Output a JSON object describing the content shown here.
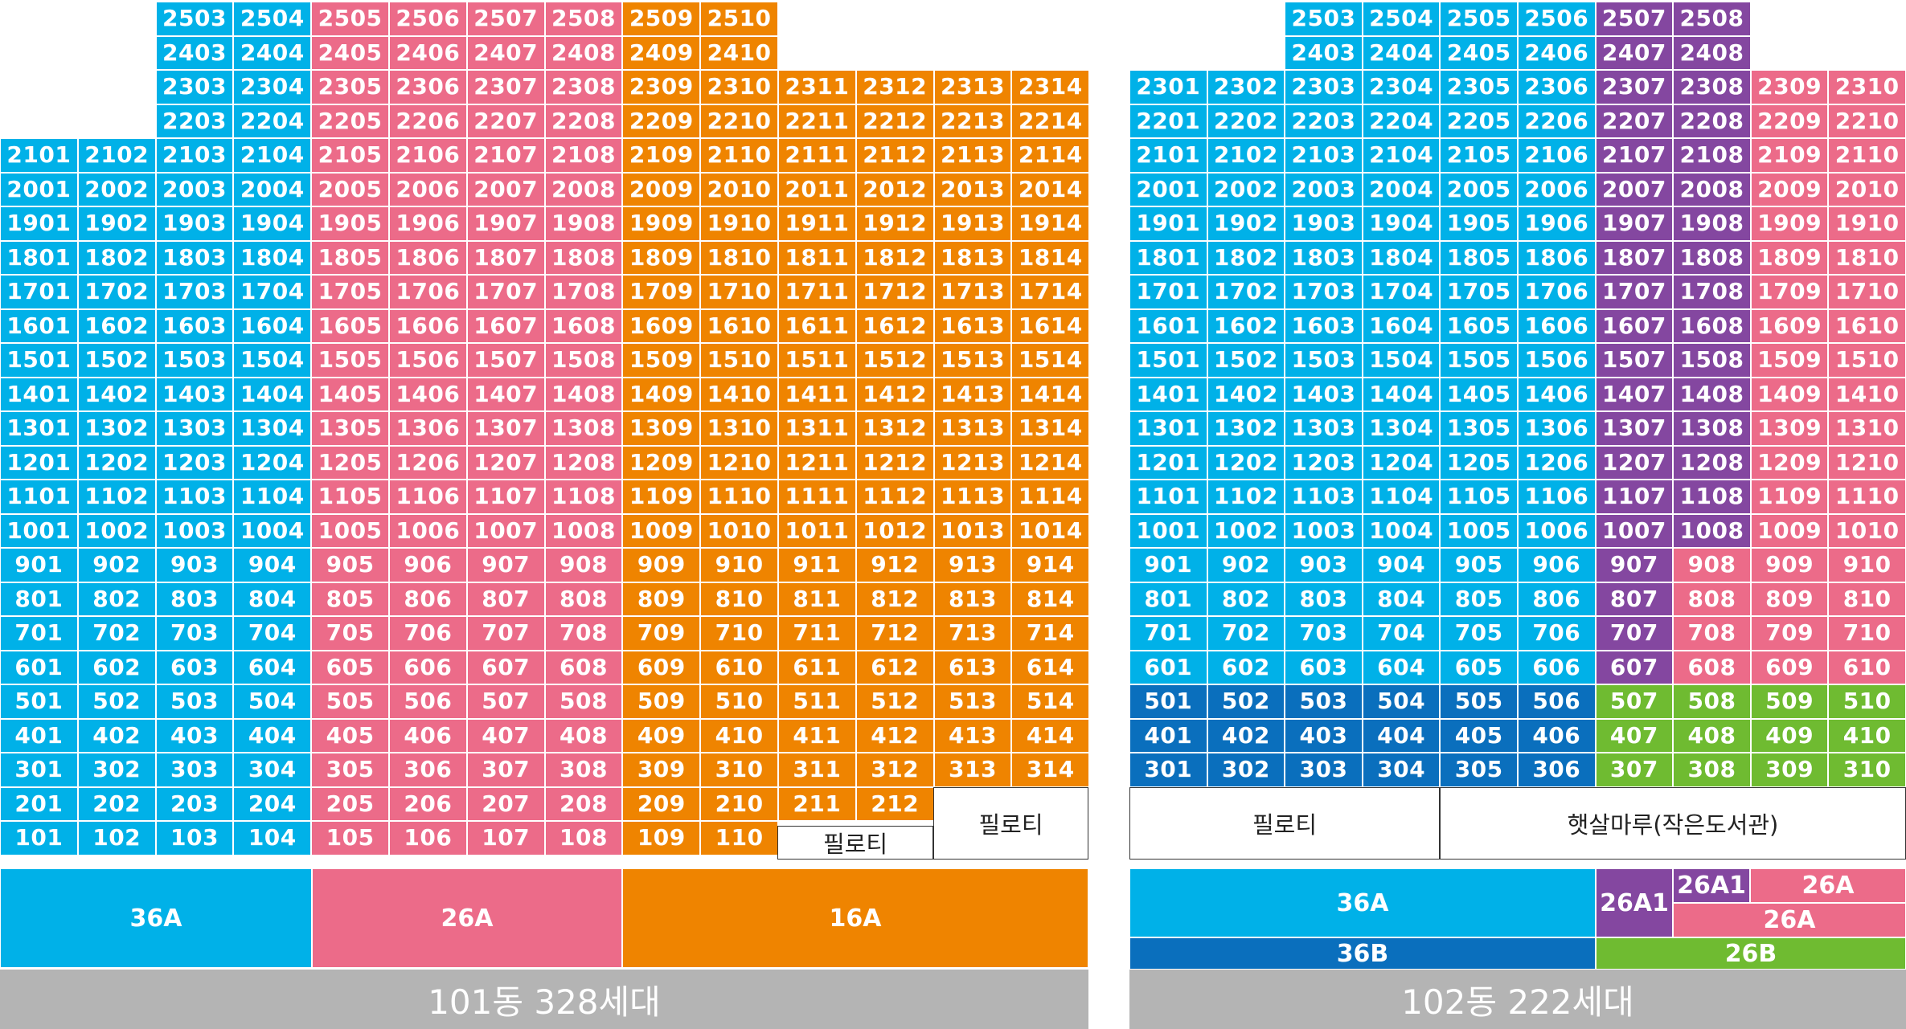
{
  "colors": {
    "t36A": "#00b1e8",
    "t36B": "#0a6fbd",
    "t26A": "#ec6b89",
    "t26A1": "#8447a0",
    "t26B": "#6fbb31",
    "t16A": "#ef8400",
    "footer": "#b4b4b4"
  },
  "building101": {
    "footer": "101동 328세대",
    "piloti_left": "필로티",
    "piloti_right": "필로티",
    "legend": [
      {
        "label": "36A",
        "type": "36A"
      },
      {
        "label": "26A",
        "type": "26A"
      },
      {
        "label": "16A",
        "type": "16A"
      }
    ]
  },
  "building102": {
    "footer": "102동 222세대",
    "piloti": "필로티",
    "library": "햇살마루(작은도서관)",
    "legend": [
      {
        "label": "36A",
        "type": "36A"
      },
      {
        "label": "26A1",
        "type": "26A1"
      },
      {
        "label": "26A1",
        "type": "26A1"
      },
      {
        "label": "26A",
        "type": "26A"
      },
      {
        "label": "26A",
        "type": "26A"
      },
      {
        "label": "36B",
        "type": "36B"
      },
      {
        "label": "26B",
        "type": "26B"
      }
    ]
  }
}
